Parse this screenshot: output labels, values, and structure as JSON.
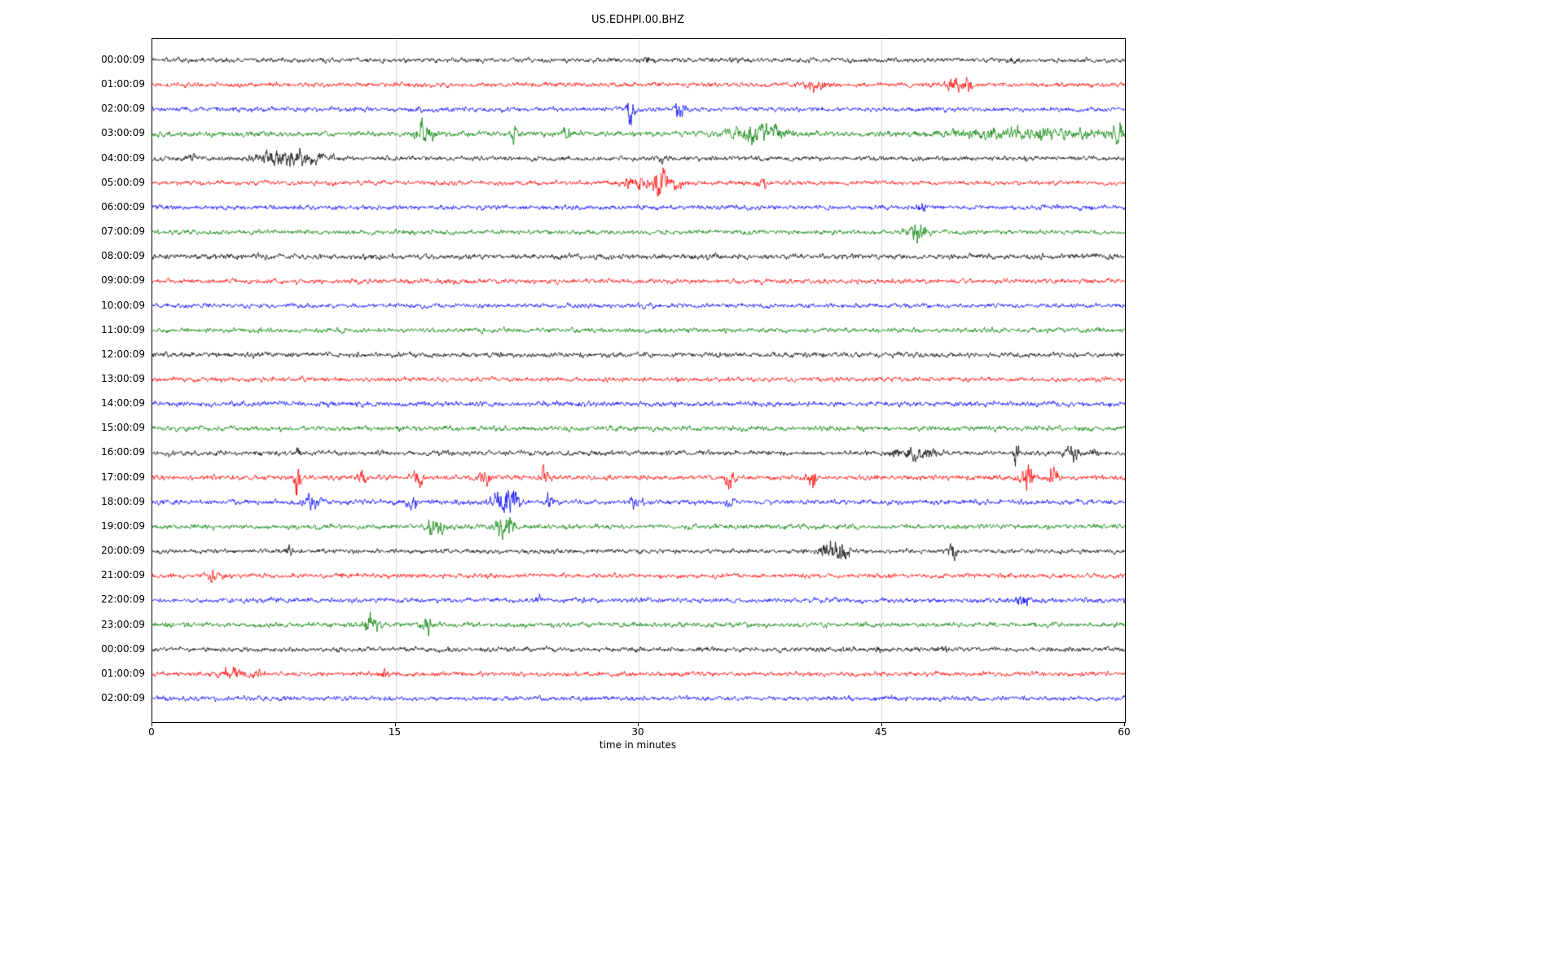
{
  "chart_data": {
    "type": "line",
    "title": "US.EDHPI.00.BHZ",
    "xlabel": "time in minutes",
    "x_range": [
      0,
      60
    ],
    "x_ticks": [
      0,
      15,
      30,
      45,
      60
    ],
    "grid": true,
    "grid_color": "#d9d9d9",
    "trace_colors_cycle": [
      "#000000",
      "#ff0000",
      "#0000ff",
      "#008000"
    ],
    "rows": [
      {
        "label": "00:00:09",
        "color": "#000000",
        "amp": 2.2,
        "events": [
          {
            "t": 30.5,
            "a": 3,
            "w": 0.3
          },
          {
            "t": 53.2,
            "a": 3,
            "w": 0.2
          }
        ]
      },
      {
        "label": "01:00:09",
        "color": "#ff0000",
        "amp": 2.2,
        "events": [
          {
            "t": 41.0,
            "a": 4,
            "w": 0.8
          },
          {
            "t": 49.5,
            "a": 7,
            "w": 0.5
          },
          {
            "t": 50.3,
            "a": 5,
            "w": 0.3
          }
        ]
      },
      {
        "label": "02:00:09",
        "color": "#0000ff",
        "amp": 2.2,
        "events": [
          {
            "t": 16.5,
            "a": 3,
            "w": 0.2
          },
          {
            "t": 29.5,
            "a": 20,
            "w": 0.22
          },
          {
            "t": 32.5,
            "a": 7,
            "w": 0.3
          }
        ]
      },
      {
        "label": "03:00:09",
        "color": "#008000",
        "amp": 2.5,
        "events": [
          {
            "t": 16.8,
            "a": 11,
            "w": 0.5
          },
          {
            "t": 22.3,
            "a": 8,
            "w": 0.15
          },
          {
            "t": 25.6,
            "a": 5,
            "w": 0.3
          },
          {
            "t": 36.8,
            "a": 7,
            "w": 1.2
          },
          {
            "t": 38.6,
            "a": 5,
            "w": 0.8
          },
          {
            "t": 51.0,
            "a": 3,
            "w": 3.0
          },
          {
            "t": 56.0,
            "a": 3.5,
            "w": 3.0
          },
          {
            "t": 59.6,
            "a": 9,
            "w": 0.4
          }
        ]
      },
      {
        "label": "04:00:09",
        "color": "#000000",
        "amp": 2.2,
        "events": [
          {
            "t": 2.5,
            "a": 4,
            "w": 0.2
          },
          {
            "t": 7.8,
            "a": 6,
            "w": 1.4
          },
          {
            "t": 9.6,
            "a": 4,
            "w": 1.2
          },
          {
            "t": 31.5,
            "a": 3,
            "w": 0.3
          }
        ]
      },
      {
        "label": "05:00:09",
        "color": "#ff0000",
        "amp": 2.2,
        "events": [
          {
            "t": 30.0,
            "a": 5,
            "w": 1.0
          },
          {
            "t": 31.3,
            "a": 14,
            "w": 0.35
          },
          {
            "t": 32.1,
            "a": 7,
            "w": 0.5
          },
          {
            "t": 37.6,
            "a": 4,
            "w": 0.3
          }
        ]
      },
      {
        "label": "06:00:09",
        "color": "#0000ff",
        "amp": 2.2,
        "events": [
          {
            "t": 47.5,
            "a": 3,
            "w": 0.3
          }
        ]
      },
      {
        "label": "07:00:09",
        "color": "#008000",
        "amp": 2.2,
        "events": [
          {
            "t": 47.2,
            "a": 13,
            "w": 0.5
          }
        ]
      },
      {
        "label": "08:00:09",
        "color": "#000000",
        "amp": 2.5,
        "events": []
      },
      {
        "label": "09:00:09",
        "color": "#ff0000",
        "amp": 2.3,
        "events": []
      },
      {
        "label": "10:00:09",
        "color": "#0000ff",
        "amp": 2.2,
        "events": []
      },
      {
        "label": "11:00:09",
        "color": "#008000",
        "amp": 2.3,
        "events": []
      },
      {
        "label": "12:00:09",
        "color": "#000000",
        "amp": 2.4,
        "events": []
      },
      {
        "label": "13:00:09",
        "color": "#ff0000",
        "amp": 2.2,
        "events": []
      },
      {
        "label": "14:00:09",
        "color": "#0000ff",
        "amp": 2.4,
        "events": []
      },
      {
        "label": "15:00:09",
        "color": "#008000",
        "amp": 2.4,
        "events": []
      },
      {
        "label": "16:00:09",
        "color": "#000000",
        "amp": 2.3,
        "events": [
          {
            "t": 9.0,
            "a": 5,
            "w": 0.15
          },
          {
            "t": 46.8,
            "a": 5,
            "w": 1.2
          },
          {
            "t": 53.3,
            "a": 13,
            "w": 0.15
          },
          {
            "t": 56.8,
            "a": 5,
            "w": 0.4
          },
          {
            "t": 58.1,
            "a": 3,
            "w": 0.3
          }
        ]
      },
      {
        "label": "17:00:09",
        "color": "#ff0000",
        "amp": 2.3,
        "events": [
          {
            "t": 8.9,
            "a": 18,
            "w": 0.2
          },
          {
            "t": 13.0,
            "a": 8,
            "w": 0.3
          },
          {
            "t": 16.4,
            "a": 11,
            "w": 0.25
          },
          {
            "t": 20.5,
            "a": 10,
            "w": 0.3
          },
          {
            "t": 24.2,
            "a": 8,
            "w": 0.25
          },
          {
            "t": 35.6,
            "a": 9,
            "w": 0.3
          },
          {
            "t": 40.7,
            "a": 10,
            "w": 0.25
          },
          {
            "t": 54.0,
            "a": 14,
            "w": 0.3
          },
          {
            "t": 55.6,
            "a": 8,
            "w": 0.3
          }
        ]
      },
      {
        "label": "18:00:09",
        "color": "#0000ff",
        "amp": 2.3,
        "events": [
          {
            "t": 9.8,
            "a": 5,
            "w": 0.5
          },
          {
            "t": 16.0,
            "a": 7,
            "w": 0.4
          },
          {
            "t": 21.7,
            "a": 9,
            "w": 0.7
          },
          {
            "t": 22.4,
            "a": 7,
            "w": 0.4
          },
          {
            "t": 24.5,
            "a": 6,
            "w": 0.2
          },
          {
            "t": 29.8,
            "a": 4,
            "w": 0.4
          },
          {
            "t": 35.6,
            "a": 6,
            "w": 0.2
          }
        ]
      },
      {
        "label": "19:00:09",
        "color": "#008000",
        "amp": 2.3,
        "events": [
          {
            "t": 17.5,
            "a": 9,
            "w": 0.5
          },
          {
            "t": 21.5,
            "a": 11,
            "w": 0.4
          },
          {
            "t": 22.1,
            "a": 7,
            "w": 0.3
          }
        ]
      },
      {
        "label": "20:00:09",
        "color": "#000000",
        "amp": 2.2,
        "events": [
          {
            "t": 8.4,
            "a": 6,
            "w": 0.2
          },
          {
            "t": 42.0,
            "a": 8,
            "w": 0.7
          },
          {
            "t": 42.6,
            "a": 6,
            "w": 0.4
          },
          {
            "t": 49.3,
            "a": 9,
            "w": 0.25
          }
        ]
      },
      {
        "label": "21:00:09",
        "color": "#ff0000",
        "amp": 2.2,
        "events": [
          {
            "t": 3.8,
            "a": 4,
            "w": 0.5
          }
        ]
      },
      {
        "label": "22:00:09",
        "color": "#0000ff",
        "amp": 2.3,
        "events": [
          {
            "t": 23.8,
            "a": 3,
            "w": 0.2
          },
          {
            "t": 53.7,
            "a": 7,
            "w": 0.3
          }
        ]
      },
      {
        "label": "23:00:09",
        "color": "#008000",
        "amp": 2.3,
        "events": [
          {
            "t": 13.5,
            "a": 11,
            "w": 0.4
          },
          {
            "t": 16.9,
            "a": 10,
            "w": 0.3
          }
        ]
      },
      {
        "label": "00:00:09",
        "color": "#000000",
        "amp": 2.3,
        "events": [
          {
            "t": 44.8,
            "a": 3,
            "w": 0.2
          },
          {
            "t": 48.8,
            "a": 4,
            "w": 0.3
          }
        ]
      },
      {
        "label": "01:00:09",
        "color": "#ff0000",
        "amp": 2.2,
        "events": [
          {
            "t": 5.0,
            "a": 4,
            "w": 0.8
          },
          {
            "t": 6.5,
            "a": 3,
            "w": 0.5
          },
          {
            "t": 14.3,
            "a": 5,
            "w": 0.2
          }
        ]
      },
      {
        "label": "02:00:09",
        "color": "#0000ff",
        "amp": 2.3,
        "events": []
      }
    ]
  }
}
